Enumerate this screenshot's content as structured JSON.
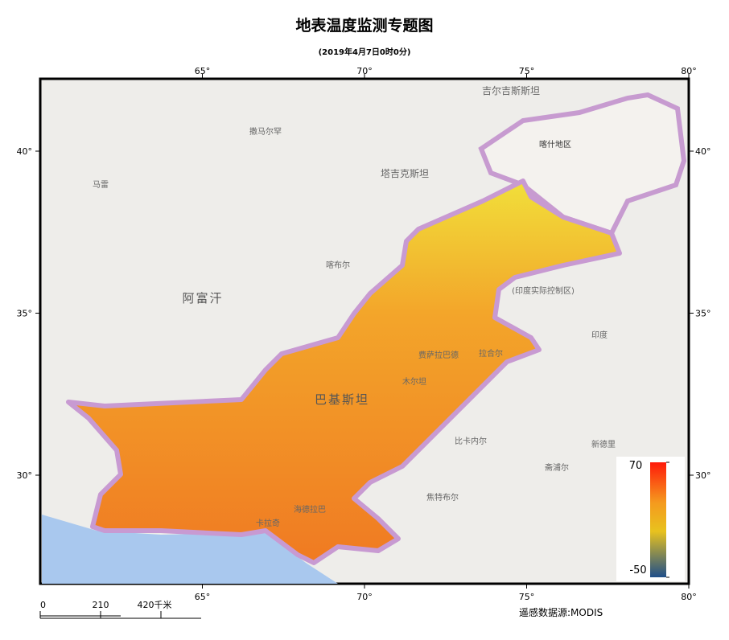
{
  "header": {
    "title": "地表温度监测专题图",
    "subtitle": "(2019年4月7日0时0分)"
  },
  "map": {
    "lon_ticks": [
      {
        "value": 65,
        "label": "65°"
      },
      {
        "value": 70,
        "label": "70°"
      },
      {
        "value": 75,
        "label": "75°"
      },
      {
        "value": 80,
        "label": "80°"
      }
    ],
    "lat_ticks": [
      {
        "value": 40,
        "label": "40°"
      },
      {
        "value": 35,
        "label": "35°"
      },
      {
        "value": 30,
        "label": "30°"
      }
    ],
    "places": [
      "阿富汗",
      "巴基斯坦",
      "塔吉克斯坦",
      "吉尔吉斯斯坦",
      "喀什地区",
      "印度",
      "新德里",
      "斋浦尔",
      "焦特布尔",
      "比卡内尔",
      "撒马尔罕",
      "喀布尔",
      "马雷",
      "拉合尔",
      "费萨拉巴德",
      "海德拉巴",
      "卡拉奇",
      "木尔坦",
      "(印度实际控制区)"
    ]
  },
  "legend": {
    "max": 70,
    "min": -50
  },
  "scale_bar": {
    "ticks": [
      0,
      210,
      {
        "value": 420,
        "label": "420千米"
      }
    ]
  },
  "source": "遥感数据源:MODIS"
}
